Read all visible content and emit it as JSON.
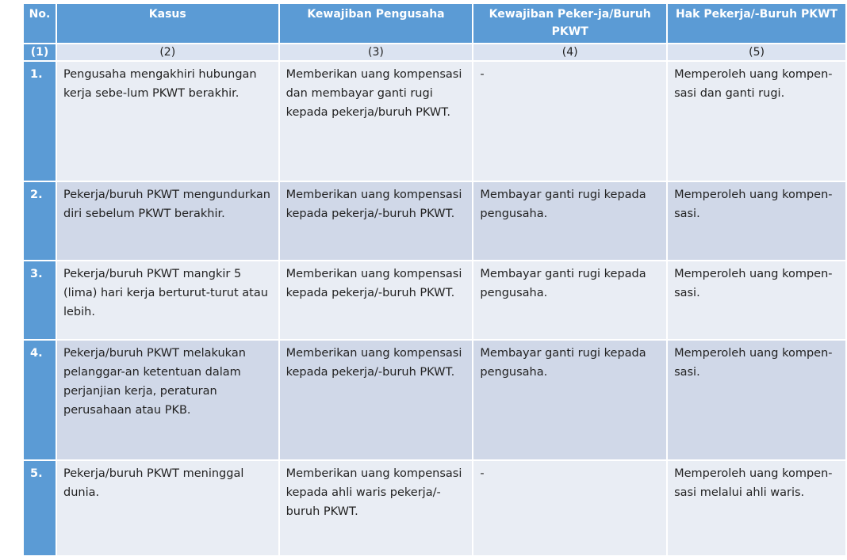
{
  "table": {
    "header": [
      "No.",
      "Kasus",
      "Kewajiban Pengusaha",
      "Kewajiban Peker-ja/Buruh PKWT",
      "Hak Pekerja/-Buruh PKWT"
    ],
    "numbering": [
      "(1)",
      "(2)",
      "(3)",
      "(4)",
      "(5)"
    ],
    "rows": [
      [
        "1.",
        "Pengusaha mengakhiri hubungan kerja sebe-lum PKWT berakhir.",
        "Memberikan uang kompensasi dan membayar ganti rugi kepada pekerja/buruh PKWT.",
        "-",
        "Memperoleh uang kompen-sasi dan ganti rugi."
      ],
      [
        "2.",
        "Pekerja/buruh PKWT mengundurkan diri sebelum PKWT berakhir.",
        "Memberikan uang kompensasi kepada pekerja/-buruh PKWT.",
        "Membayar ganti rugi kepada pengusaha.",
        "Memperoleh uang kompen-sasi."
      ],
      [
        "3.",
        "Pekerja/buruh PKWT mangkir 5 (lima) hari kerja berturut-turut atau lebih.",
        "Memberikan uang kompensasi kepada pekerja/-buruh PKWT.",
        "Membayar ganti rugi kepada pengusaha.",
        "Memperoleh uang kompen-sasi."
      ],
      [
        "4.",
        "Pekerja/buruh PKWT melakukan pelanggar-an ketentuan dalam perjanjian kerja, peraturan perusahaan atau PKB.",
        "Memberikan uang kompensasi kepada pekerja/-buruh PKWT.",
        "Membayar ganti rugi kepada pengusaha.",
        "Memperoleh uang kompen-sasi."
      ],
      [
        "5.",
        "Pekerja/buruh PKWT meninggal dunia.",
        "Memberikan uang kompensasi kepada ahli waris pekerja/-buruh PKWT.",
        "-",
        "Memperoleh uang kompen-sasi melalui ahli waris."
      ]
    ]
  }
}
